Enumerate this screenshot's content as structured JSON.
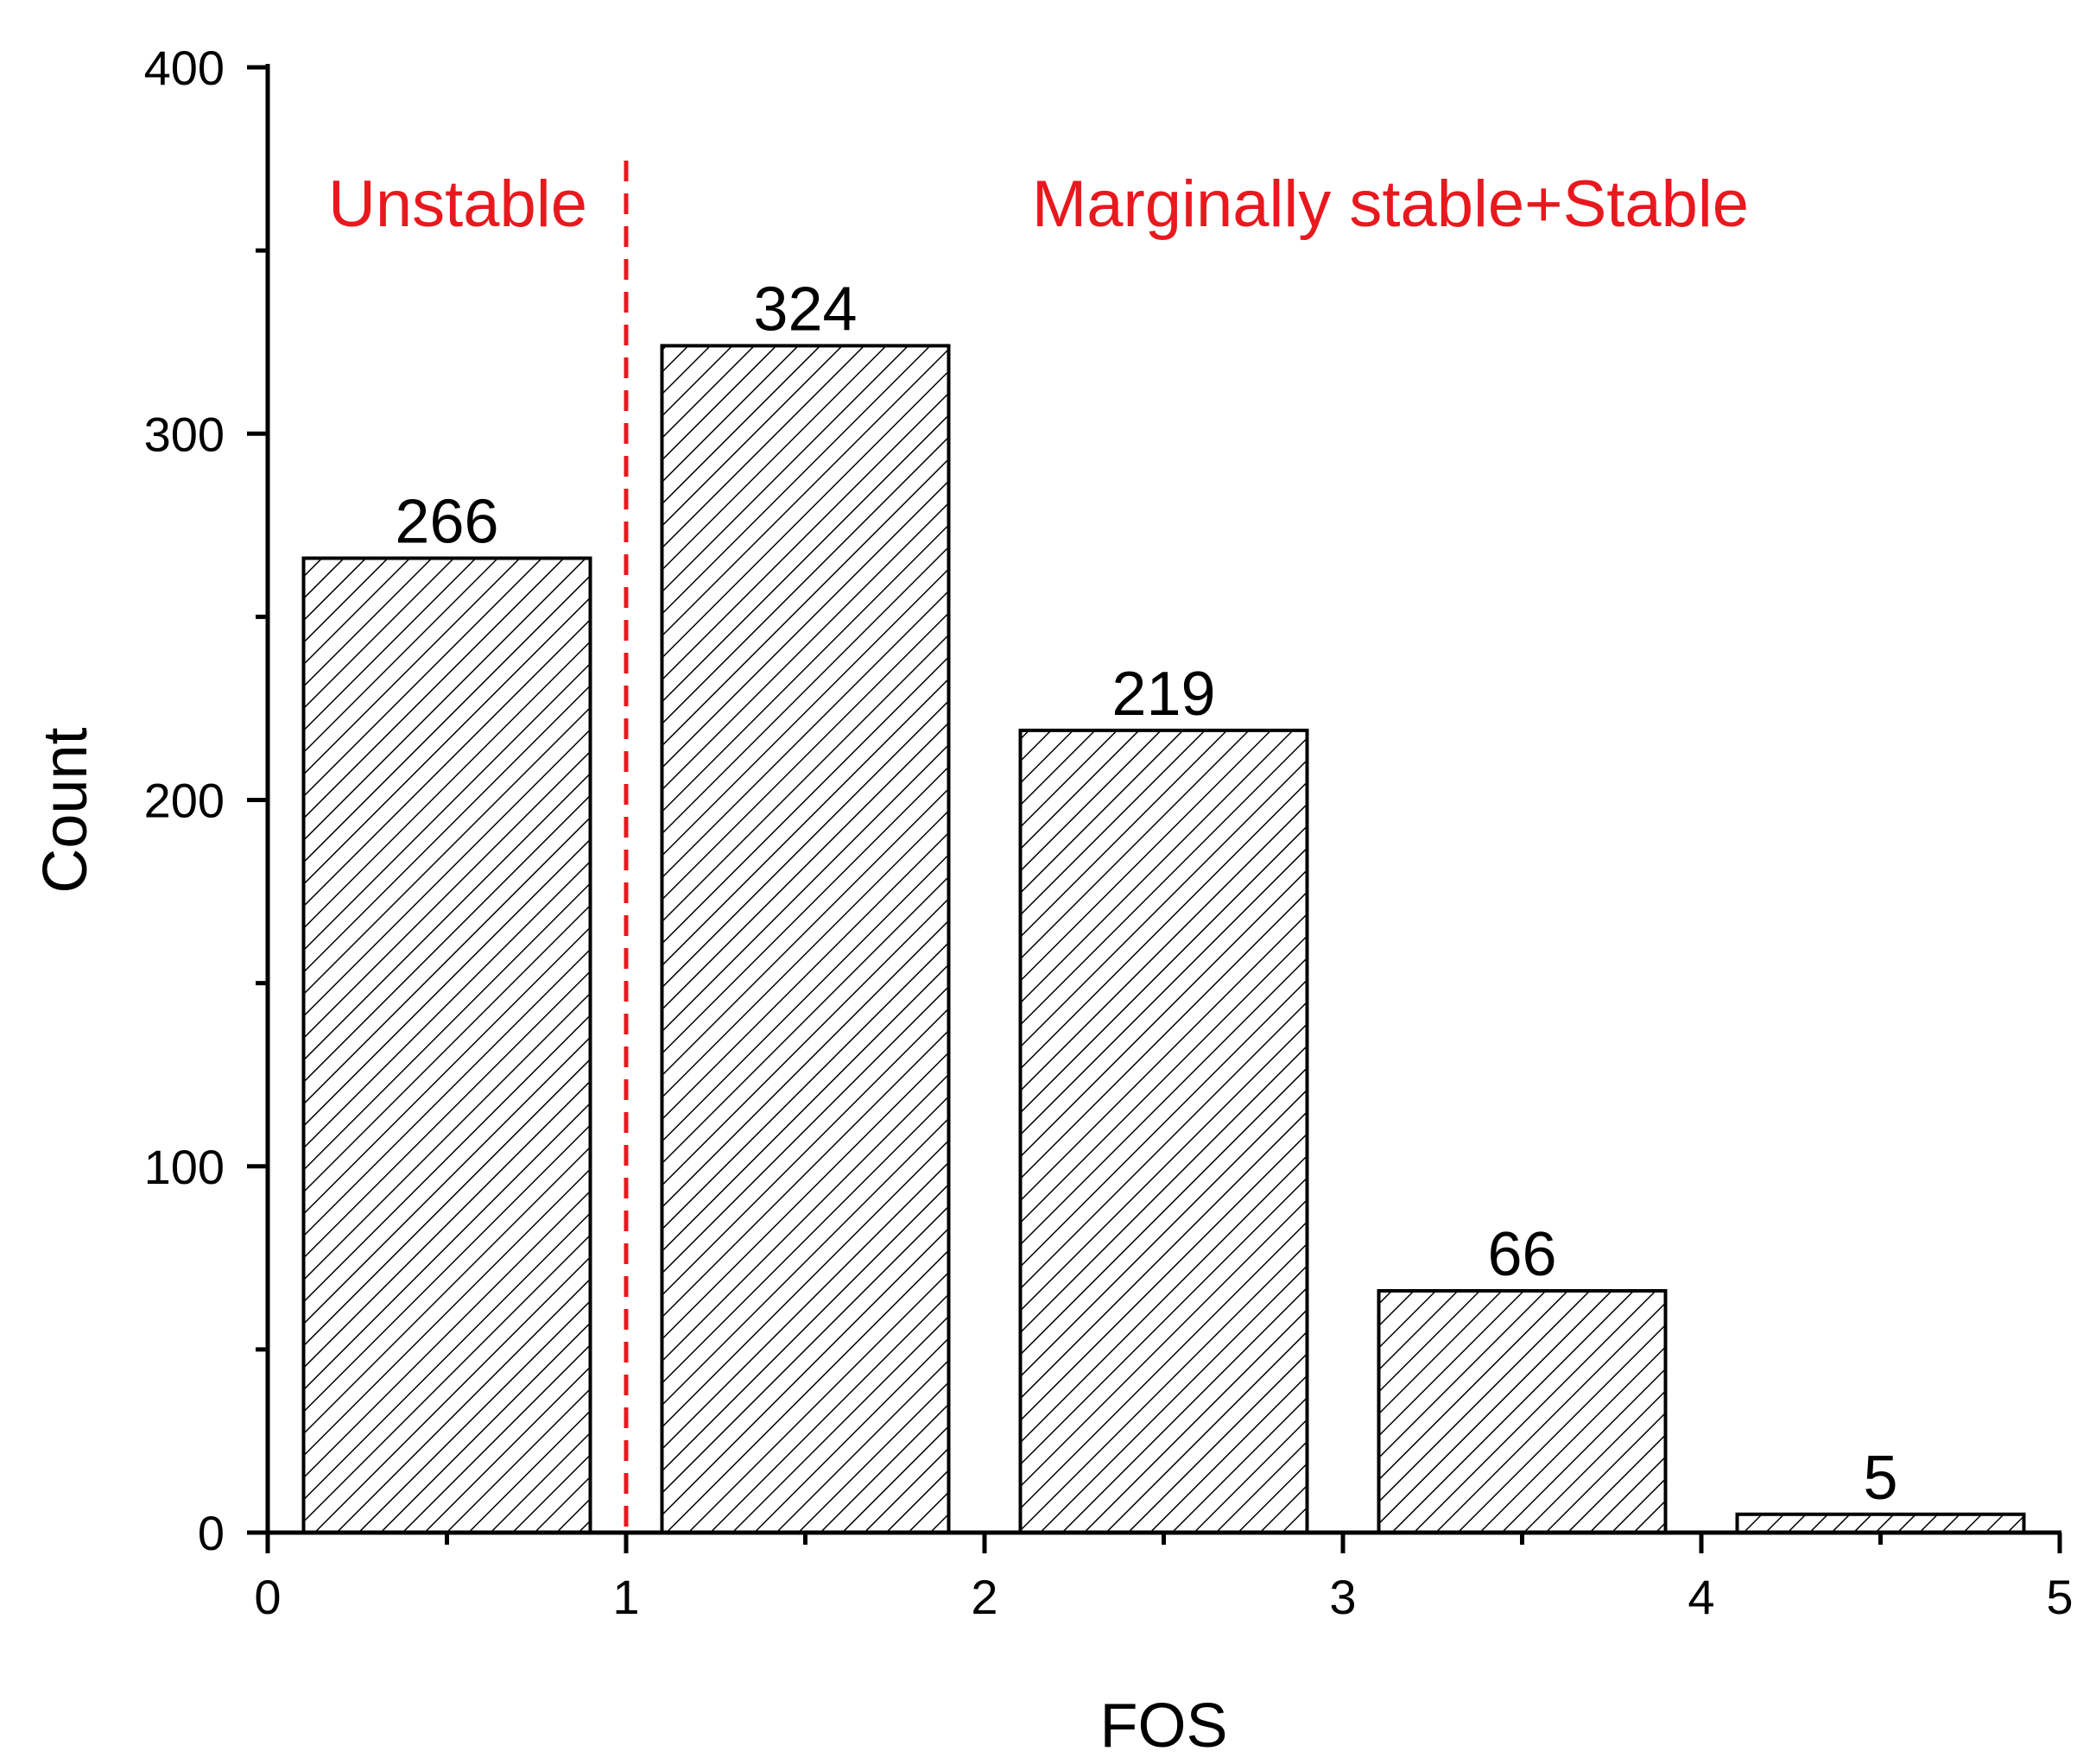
{
  "chart_data": {
    "type": "bar",
    "title": "",
    "xlabel": "FOS",
    "ylabel": "Count",
    "bins": [
      {
        "x0": 0,
        "x1": 1,
        "value": 266
      },
      {
        "x0": 1,
        "x1": 2,
        "value": 324
      },
      {
        "x0": 2,
        "x1": 3,
        "value": 219
      },
      {
        "x0": 3,
        "x1": 4,
        "value": 66
      },
      {
        "x0": 4,
        "x1": 5,
        "value": 5
      }
    ],
    "data_labels": [
      "266",
      "324",
      "219",
      "66",
      "5"
    ],
    "xlim": [
      0,
      5
    ],
    "ylim": [
      0,
      400
    ],
    "x_ticks": [
      "0",
      "1",
      "2",
      "3",
      "4",
      "5"
    ],
    "y_ticks": [
      "0",
      "100",
      "200",
      "300",
      "400"
    ],
    "grid": false,
    "bar_fill": "hatched",
    "threshold": {
      "x": 1,
      "style": "dashed",
      "color": "#e8191e"
    },
    "regions": [
      {
        "label": "Unstable",
        "color": "#e8191e"
      },
      {
        "label": "Marginally stable+Stable",
        "color": "#e8191e"
      }
    ]
  }
}
